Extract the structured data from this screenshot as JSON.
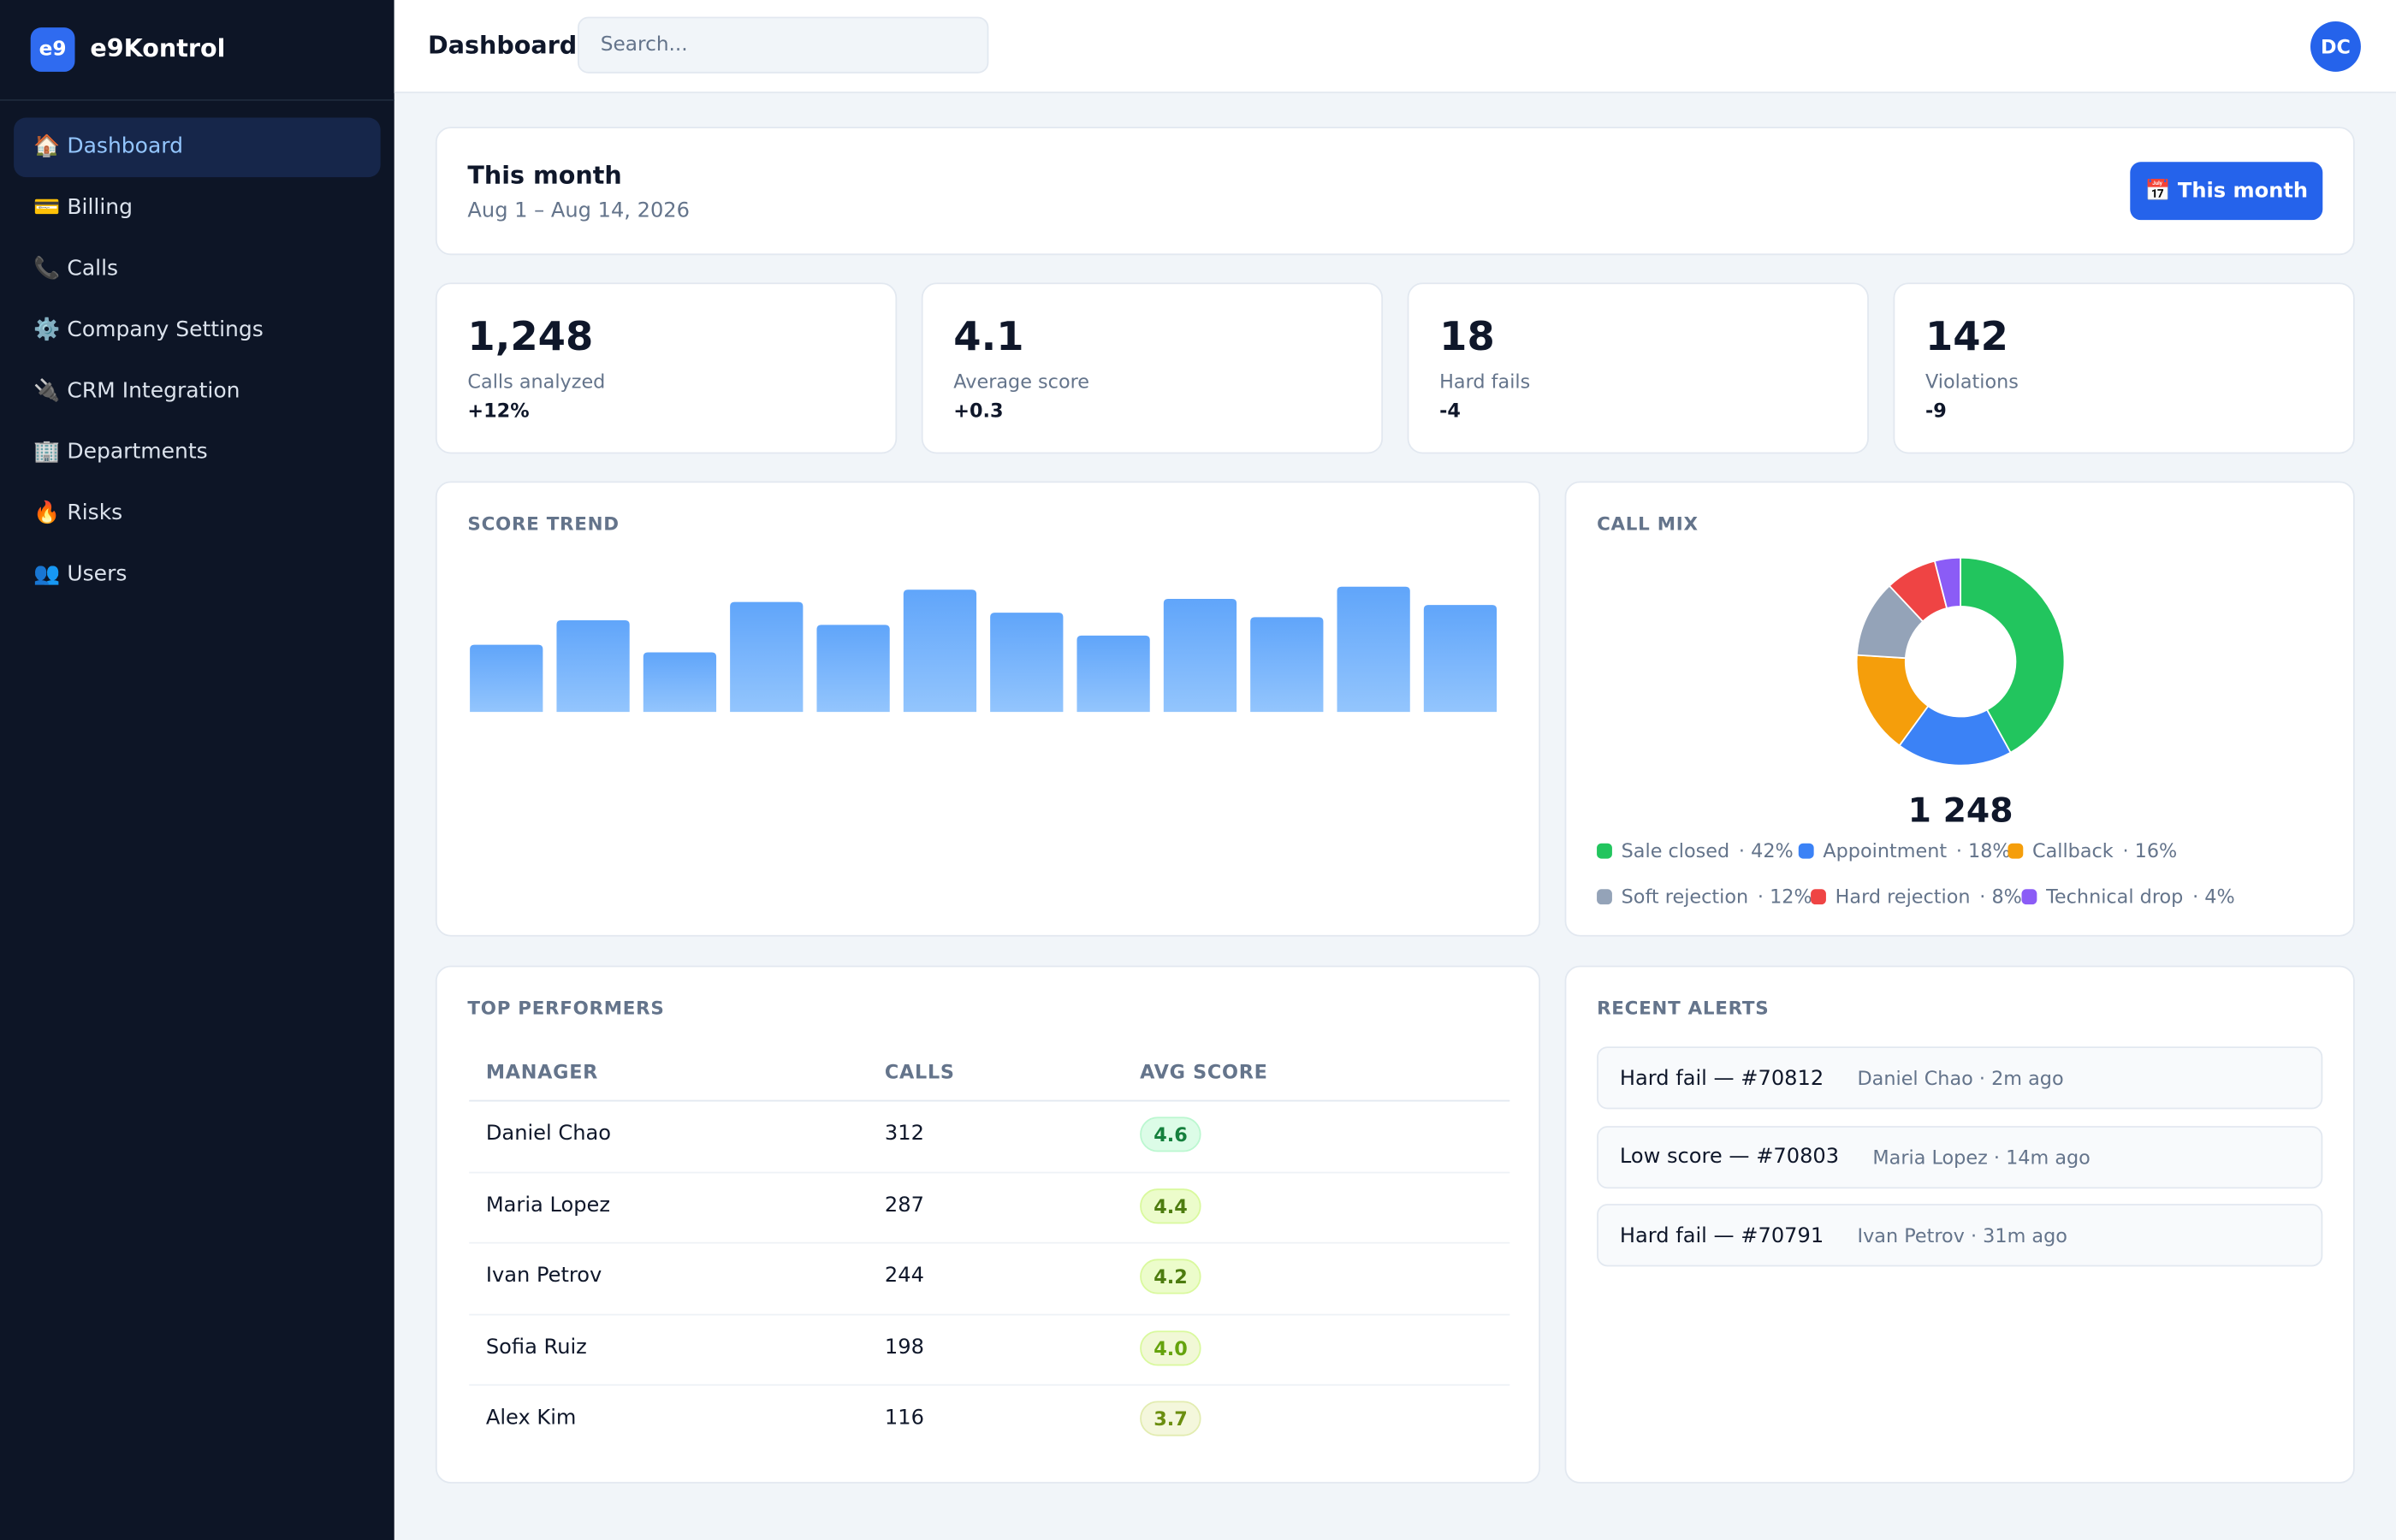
{
  "app": {
    "logo": "e9",
    "name": "e9Kontrol"
  },
  "nav": [
    "🏠 Dashboard",
    "💳 Billing",
    "📞 Calls",
    "⚙️ Company Settings",
    "🔌 CRM Integration",
    "🏢 Departments",
    "🔥 Risks",
    "👥 Users"
  ],
  "header": {
    "title": "Dashboard",
    "search_placeholder": "Search...",
    "avatar": "DC"
  },
  "period": {
    "title": "This month",
    "range": "Aug 1 – Aug 14, 2026",
    "button": "📅 This month"
  },
  "kpis": [
    {
      "value": "1,248",
      "label": "Calls analyzed",
      "delta": "+12%"
    },
    {
      "value": "4.1",
      "label": "Average score",
      "delta": "+0.3"
    },
    {
      "value": "18",
      "label": "Hard fails",
      "delta": "-4"
    },
    {
      "value": "142",
      "label": "Violations",
      "delta": "-9"
    }
  ],
  "chart_data": [
    {
      "type": "bar",
      "title": "SCORE TREND",
      "values": [
        44,
        60,
        39,
        72,
        57,
        80,
        65,
        50,
        74,
        62,
        82,
        70
      ],
      "ylim": [
        0,
        100
      ],
      "color": "#60a5fa"
    },
    {
      "type": "pie",
      "title": "CALL MIX",
      "total_label": "1 248",
      "categories": [
        "Sale closed",
        "Appointment",
        "Callback",
        "Soft rejection",
        "Hard rejection",
        "Technical drop"
      ],
      "values": [
        42,
        18,
        16,
        12,
        8,
        4
      ],
      "value_labels": [
        "42%",
        "18%",
        "16%",
        "12%",
        "8%",
        "4%"
      ],
      "colors": [
        "#22c55e",
        "#3b82f6",
        "#f59e0b",
        "#94a3b8",
        "#ef4444",
        "#8b5cf6"
      ]
    }
  ],
  "top_performers": {
    "title": "TOP PERFORMERS",
    "columns": [
      "MANAGER",
      "CALLS",
      "AVG SCORE"
    ],
    "rows": [
      [
        "Daniel Chao",
        "312",
        "4.6"
      ],
      [
        "Maria Lopez",
        "287",
        "4.4"
      ],
      [
        "Ivan Petrov",
        "244",
        "4.2"
      ],
      [
        "Sofia Ruiz",
        "198",
        "4.0"
      ],
      [
        "Alex Kim",
        "116",
        "3.7"
      ]
    ]
  },
  "recent_alerts": {
    "title": "RECENT ALERTS",
    "items": [
      {
        "title": "Hard fail — #70812",
        "meta": "Daniel Chao · 2m ago"
      },
      {
        "title": "Low score — #70803",
        "meta": "Maria Lopez · 14m ago"
      },
      {
        "title": "Hard fail — #70791",
        "meta": "Ivan Petrov · 31m ago"
      }
    ]
  }
}
